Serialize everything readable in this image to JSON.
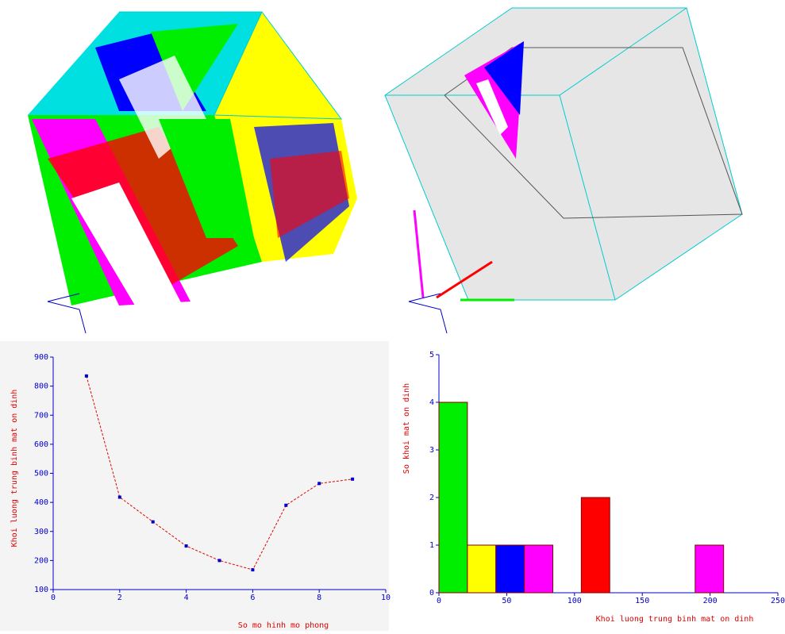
{
  "chart_data": [
    {
      "type": "line",
      "x": [
        1,
        2,
        3,
        4,
        5,
        6,
        7,
        8,
        9
      ],
      "series": [
        {
          "color": "#e00000",
          "marker_color": "#0000cc",
          "line_style": "dashed",
          "values": [
            835,
            418,
            333,
            250,
            200,
            168,
            390,
            465,
            480
          ]
        }
      ],
      "xlim": [
        0,
        10
      ],
      "xticks": [
        0,
        2,
        4,
        6,
        8,
        10
      ],
      "ylim": [
        100,
        900
      ],
      "yticks": [
        100,
        200,
        300,
        400,
        500,
        600,
        700,
        800,
        900
      ],
      "xlabel": "So mo hinh mo phong",
      "ylabel": "Khoi luong trung binh mat on dinh",
      "axis_color": "#0000cc",
      "label_color": "#e00000"
    },
    {
      "type": "histogram",
      "bins": [
        0,
        21,
        42,
        63,
        84,
        105,
        126,
        147,
        168,
        189,
        210
      ],
      "counts": [
        4,
        1,
        1,
        1,
        0,
        2,
        0,
        0,
        0,
        1
      ],
      "colors": [
        "#00ee00",
        "#ffff00",
        "#0000ff",
        "#ff00ff",
        null,
        "#ff0000",
        null,
        null,
        null,
        "#ff00ff"
      ],
      "xlim": [
        0,
        250
      ],
      "xticks": [
        0,
        50,
        100,
        150,
        200,
        250
      ],
      "ylim": [
        0,
        5
      ],
      "yticks": [
        0,
        1,
        2,
        3,
        4,
        5
      ],
      "xlabel": "Khoi luong trung binh mat on dinh",
      "ylabel": "So khoi mat on dinh",
      "axis_color": "#0000cc",
      "label_color": "#e00000"
    }
  ]
}
